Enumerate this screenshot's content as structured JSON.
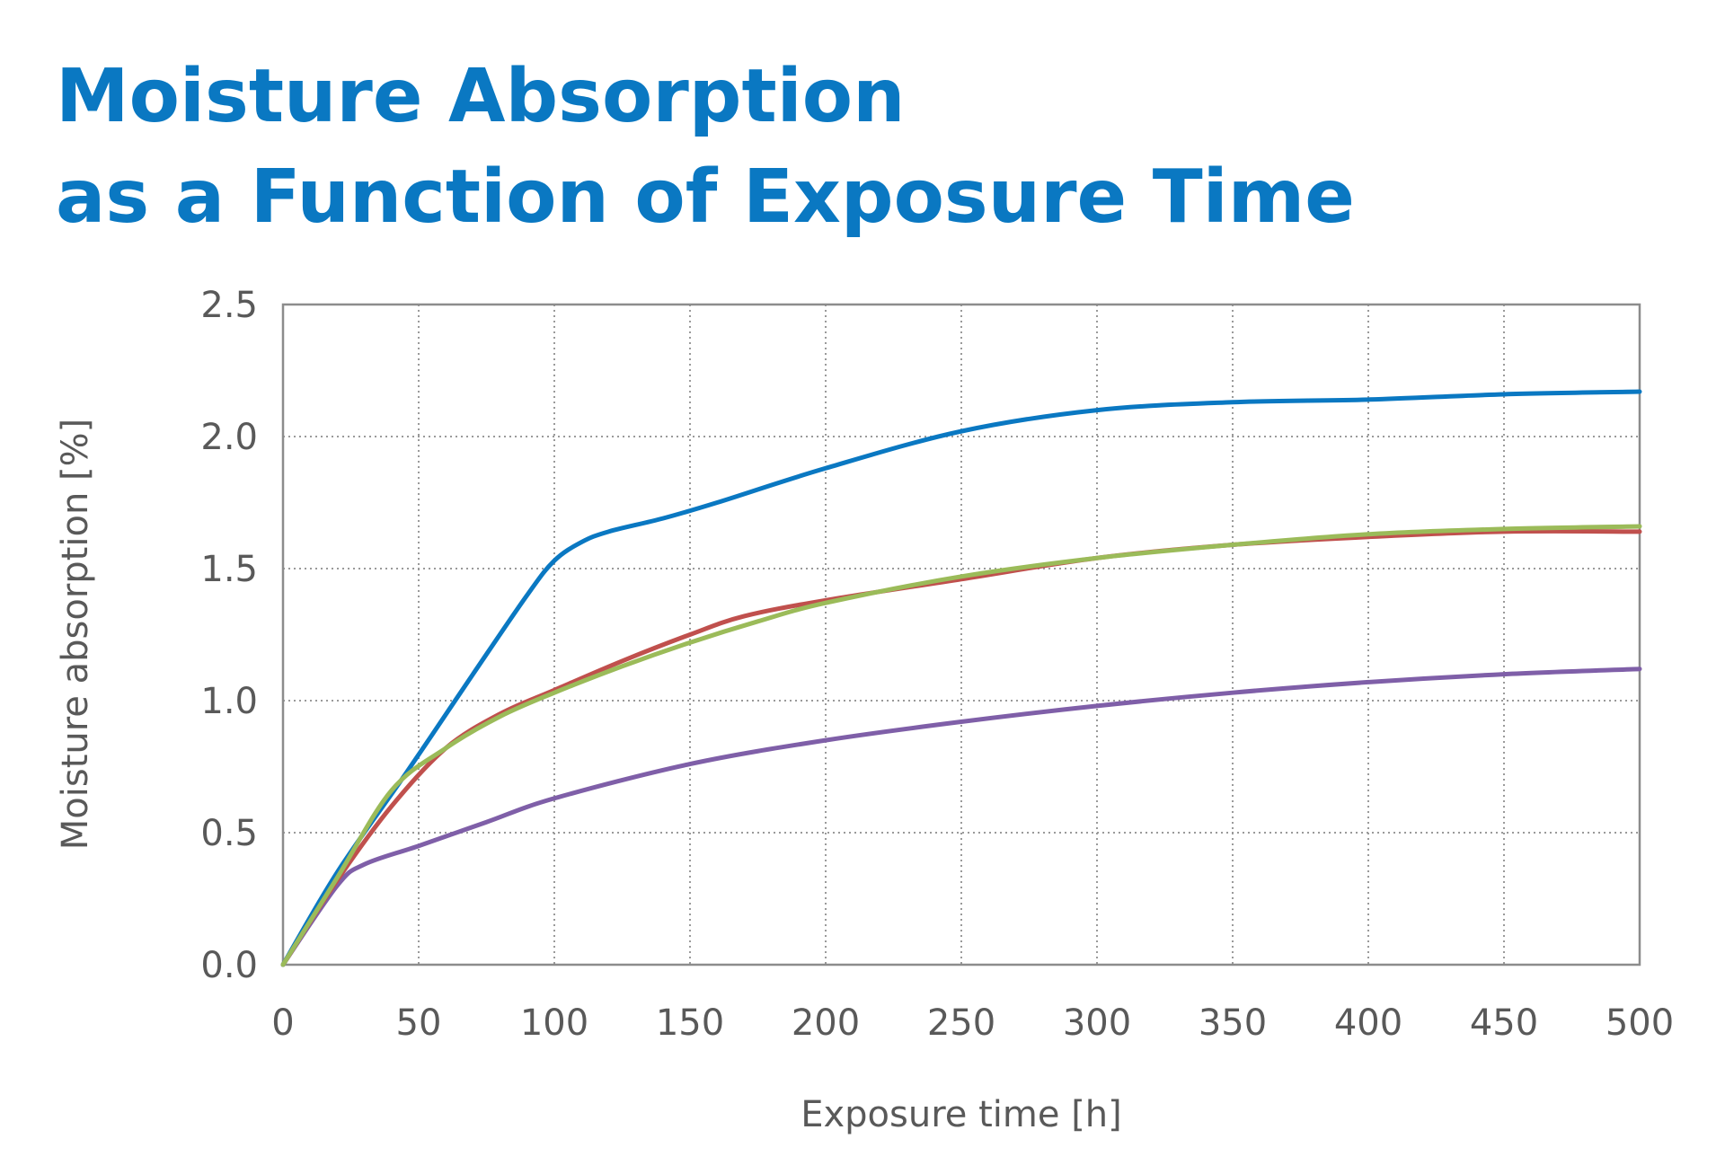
{
  "title": {
    "line1": "Moisture Absorption",
    "line2": "as a Function of Exposure Time"
  },
  "chart_data": {
    "type": "line",
    "xlabel": "Exposure time [h]",
    "ylabel": "Moisture absorption  [%]",
    "xlim": [
      0,
      500
    ],
    "ylim": [
      0,
      2.5
    ],
    "xticks": [
      0,
      50,
      100,
      150,
      200,
      250,
      300,
      350,
      400,
      450,
      500
    ],
    "yticks": [
      "0.0",
      "0.5",
      "1.0",
      "1.5",
      "2.0",
      "2.5"
    ],
    "grid": true,
    "grid_style": "dotted",
    "legend": "none",
    "series": [
      {
        "color": "#0a78c2",
        "x": [
          0,
          20,
          45,
          70,
          90,
          100,
          110,
          120,
          140,
          160,
          200,
          250,
          300,
          350,
          400,
          450,
          500
        ],
        "y": [
          0,
          0.35,
          0.72,
          1.1,
          1.4,
          1.53,
          1.6,
          1.64,
          1.69,
          1.75,
          1.88,
          2.02,
          2.1,
          2.13,
          2.14,
          2.16,
          2.17
        ]
      },
      {
        "color": "#c0504d",
        "x": [
          0,
          20,
          40,
          60,
          80,
          100,
          125,
          150,
          170,
          200,
          250,
          300,
          350,
          400,
          450,
          500
        ],
        "y": [
          0,
          0.32,
          0.6,
          0.82,
          0.95,
          1.04,
          1.15,
          1.25,
          1.32,
          1.38,
          1.46,
          1.54,
          1.59,
          1.62,
          1.64,
          1.64
        ]
      },
      {
        "color": "#9bbb59",
        "x": [
          0,
          20,
          40,
          60,
          80,
          100,
          125,
          150,
          175,
          200,
          250,
          300,
          350,
          400,
          450,
          500
        ],
        "y": [
          0,
          0.33,
          0.66,
          0.82,
          0.94,
          1.03,
          1.13,
          1.22,
          1.3,
          1.37,
          1.47,
          1.54,
          1.59,
          1.63,
          1.65,
          1.66
        ]
      },
      {
        "color": "#7f5fa8",
        "x": [
          0,
          20,
          30,
          50,
          75,
          100,
          150,
          200,
          250,
          300,
          350,
          400,
          450,
          500
        ],
        "y": [
          0,
          0.3,
          0.38,
          0.45,
          0.54,
          0.63,
          0.76,
          0.85,
          0.92,
          0.98,
          1.03,
          1.07,
          1.1,
          1.12
        ]
      }
    ]
  }
}
